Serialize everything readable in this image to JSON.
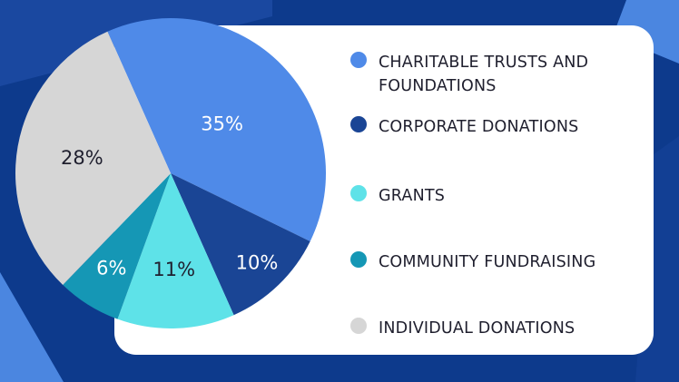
{
  "colors": {
    "background": "#0d3a8c",
    "background_accent": "#4b86e0",
    "card": "#ffffff"
  },
  "chart_data": {
    "type": "pie",
    "title": "",
    "slices": [
      {
        "label": "CHARITABLE TRUSTS AND FOUNDATIONS",
        "label_lines": [
          "CHARITABLE TRUSTS AND",
          "FOUNDATIONS"
        ],
        "value": 35,
        "display": "35%",
        "color": "#4f8ae8",
        "label_color": "#ffffff"
      },
      {
        "label": "CORPORATE DONATIONS",
        "label_lines": [
          "CORPORATE DONATIONS"
        ],
        "value": 10,
        "display": "10%",
        "color": "#1a4595",
        "label_color": "#ffffff"
      },
      {
        "label": "GRANTS",
        "label_lines": [
          "GRANTS"
        ],
        "value": 11,
        "display": "11%",
        "color": "#5ee2e8",
        "label_color": "#1f1f2e"
      },
      {
        "label": "COMMUNITY FUNDRAISING",
        "label_lines": [
          "COMMUNITY FUNDRAISING"
        ],
        "value": 6,
        "display": "6%",
        "color": "#1597b5",
        "label_color": "#ffffff"
      },
      {
        "label": "INDIVIDUAL DONATIONS",
        "label_lines": [
          "INDIVIDUAL DONATIONS"
        ],
        "value": 28,
        "display": "28%",
        "color": "#d6d6d6",
        "label_color": "#1f1f2e"
      }
    ],
    "legend_position": "right"
  }
}
